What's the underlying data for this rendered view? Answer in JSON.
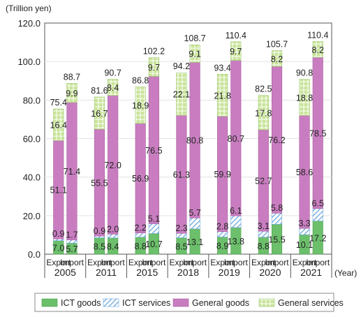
{
  "chart_data": {
    "type": "bar",
    "stacked": true,
    "ylabel": "(Trillion yen)",
    "xunit": "(Year)",
    "ylim": [
      0,
      120
    ],
    "yticks": [
      "0.0",
      "20.0",
      "40.0",
      "60.0",
      "80.0",
      "100.0",
      "120.0"
    ],
    "years": [
      "2005",
      "2011",
      "2015",
      "2018",
      "2019",
      "2020",
      "2021"
    ],
    "bar_labels": [
      "Export",
      "Import"
    ],
    "series": [
      {
        "name": "ICT goods",
        "color": "#6cbf6b"
      },
      {
        "name": "ICT services",
        "color": "#a9cdea"
      },
      {
        "name": "General goods",
        "color": "#c97dc0"
      },
      {
        "name": "General services",
        "color": "#cfe6a0"
      }
    ],
    "bars": [
      {
        "year": "2005",
        "type": "Export",
        "values": [
          7.0,
          0.9,
          51.1,
          16.4
        ],
        "labels": [
          "7.0",
          "0.9",
          "51.1",
          "16.4"
        ],
        "total": "75.4"
      },
      {
        "year": "2005",
        "type": "Import",
        "values": [
          5.7,
          1.7,
          71.4,
          9.9
        ],
        "labels": [
          "5.7",
          "1.7",
          "71.4",
          "9.9"
        ],
        "total": "88.7"
      },
      {
        "year": "2011",
        "type": "Export",
        "values": [
          8.5,
          0.9,
          55.5,
          16.7
        ],
        "labels": [
          "8.5",
          "0.9",
          "55.5",
          "16.7"
        ],
        "total": "81.6"
      },
      {
        "year": "2011",
        "type": "Import",
        "values": [
          8.4,
          2.0,
          72.0,
          8.4
        ],
        "labels": [
          "8.4",
          "2.0",
          "72.0",
          "8.4"
        ],
        "total": "90.7"
      },
      {
        "year": "2015",
        "type": "Export",
        "values": [
          8.8,
          2.2,
          56.9,
          18.9
        ],
        "labels": [
          "8.8",
          "2.2",
          "56.9",
          "18.9"
        ],
        "total": "86.8"
      },
      {
        "year": "2015",
        "type": "Import",
        "values": [
          10.7,
          5.1,
          76.5,
          9.7
        ],
        "labels": [
          "10.7",
          "5.1",
          "76.5",
          "9.7"
        ],
        "total": "102.2"
      },
      {
        "year": "2018",
        "type": "Export",
        "values": [
          8.5,
          2.3,
          61.3,
          22.1
        ],
        "labels": [
          "8.5",
          "2.3",
          "61.3",
          "22.1"
        ],
        "total": "94.2"
      },
      {
        "year": "2018",
        "type": "Import",
        "values": [
          13.1,
          5.7,
          80.8,
          9.1
        ],
        "labels": [
          "13.1",
          "5.7",
          "80.8",
          "9.1"
        ],
        "total": "108.7"
      },
      {
        "year": "2019",
        "type": "Export",
        "values": [
          8.9,
          2.8,
          59.9,
          21.8
        ],
        "labels": [
          "8.9",
          "2.8",
          "59.9",
          "21.8"
        ],
        "total": "93.4"
      },
      {
        "year": "2019",
        "type": "Import",
        "values": [
          13.8,
          6.1,
          80.7,
          9.7
        ],
        "labels": [
          "13.8",
          "6.1",
          "80.7",
          "9.7"
        ],
        "total": "110.4"
      },
      {
        "year": "2020",
        "type": "Export",
        "values": [
          8.8,
          3.1,
          52.7,
          17.8
        ],
        "labels": [
          "8.8",
          "3.1",
          "52.7",
          "17.8"
        ],
        "total": "82.5"
      },
      {
        "year": "2020",
        "type": "Import",
        "values": [
          15.5,
          5.8,
          76.2,
          8.2
        ],
        "labels": [
          "15.5",
          "5.8",
          "76.2",
          "8.2"
        ],
        "total": "105.7"
      },
      {
        "year": "2021",
        "type": "Export",
        "values": [
          10.1,
          3.3,
          58.6,
          18.8
        ],
        "labels": [
          "10.1",
          "3.3",
          "58.6",
          "18.8"
        ],
        "total": "90.8"
      },
      {
        "year": "2021",
        "type": "Import",
        "values": [
          17.2,
          6.5,
          78.5,
          8.2
        ],
        "labels": [
          "17.2",
          "6.5",
          "78.5",
          "8.2"
        ],
        "total": "110.4"
      }
    ]
  }
}
